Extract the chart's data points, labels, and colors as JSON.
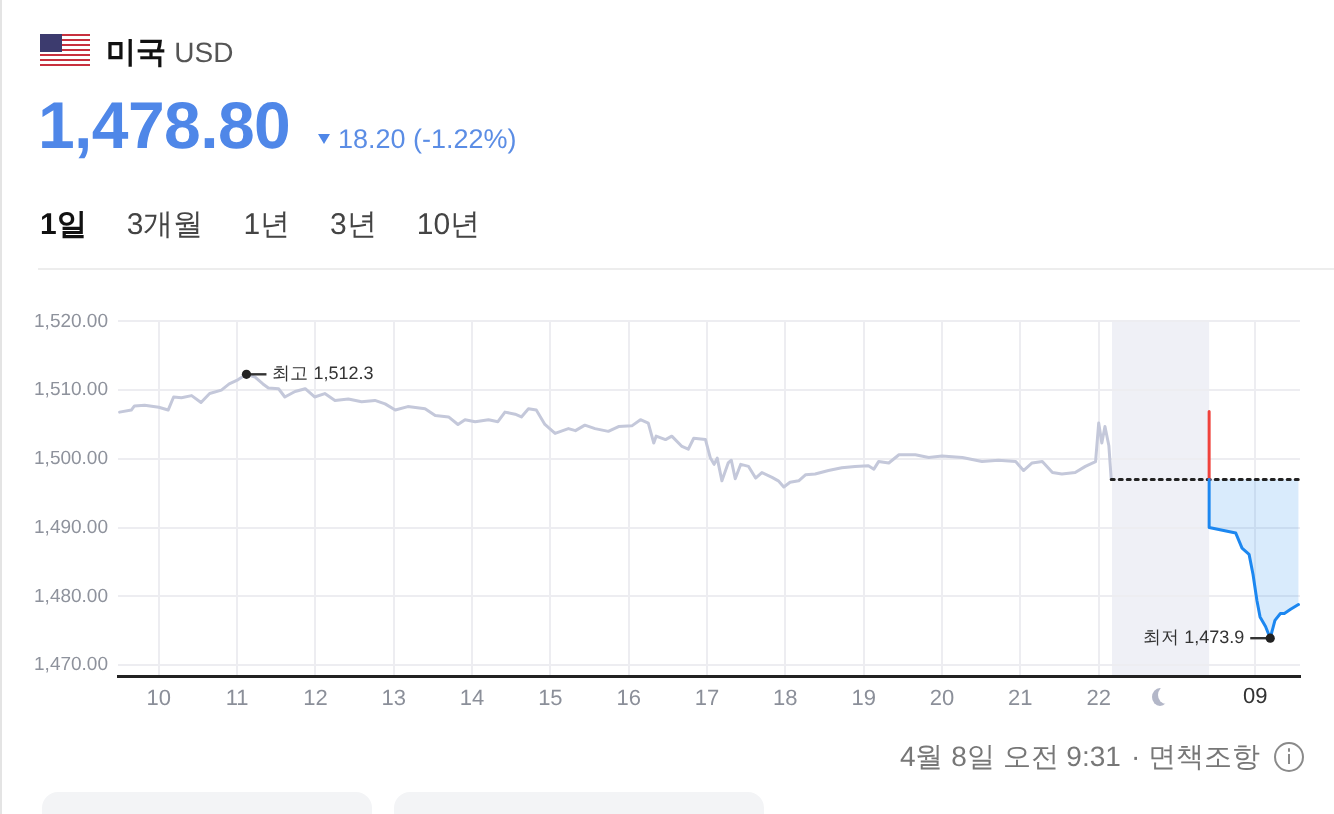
{
  "chart_data": {
    "type": "line",
    "title": "미국 USD",
    "subtitle": "1,478.80",
    "annotations": [
      "18.20 (-1.22%)",
      "1일",
      "3개월",
      "1년",
      "3년",
      "10년",
      "09",
      "4월 8일 오전 9:31",
      "· 면책조항",
      {
        "text": "최고 1,512.3",
        "x": 11.12,
        "y": 1512.3
      },
      {
        "text": "최저 1,473.9",
        "x": 24.19,
        "y": 1473.9
      }
    ],
    "xlim": [
      9.48,
      24.57
    ],
    "xticks": [
      10,
      11,
      12,
      13,
      14,
      15,
      16,
      17,
      18,
      19,
      20,
      21,
      22,
      {
        "value": 24,
        "label": null
      }
    ],
    "ylim": [
      1468.4,
      1520
    ],
    "yticks": [
      {
        "value": 1470,
        "label": "1,470.00"
      },
      {
        "value": 1480,
        "label": "1,480.00"
      },
      {
        "value": 1490,
        "label": "1,490.00"
      },
      {
        "value": 1500,
        "label": "1,500.00"
      },
      {
        "value": 1510,
        "label": "1,510.00"
      },
      {
        "value": 1520,
        "label": "1,520.00"
      }
    ],
    "grid": true,
    "bands": [
      {
        "axis": "x",
        "from": 22.17,
        "to": 23.41,
        "color": "#eff0f6"
      }
    ],
    "series": [
      {
        "color": "#c4c8da",
        "x": [
          9.5,
          9.65,
          9.69,
          9.82,
          10.0,
          10.12,
          10.19,
          10.29,
          10.42,
          10.54,
          10.65,
          10.8,
          10.9,
          11.01,
          11.12,
          11.23,
          11.33,
          11.4,
          11.53,
          11.61,
          11.74,
          11.87,
          11.99,
          12.12,
          12.25,
          12.42,
          12.59,
          12.76,
          12.89,
          13.02,
          13.18,
          13.4,
          13.53,
          13.7,
          13.82,
          13.91,
          14.04,
          14.21,
          14.33,
          14.42,
          14.55,
          14.63,
          14.72,
          14.82,
          14.93,
          15.06,
          15.23,
          15.32,
          15.44,
          15.57,
          15.74,
          15.87,
          16.04,
          16.15,
          16.25,
          16.32,
          16.35,
          16.47,
          16.55,
          16.68,
          16.76,
          16.83,
          16.98,
          17.04,
          17.09,
          17.13,
          17.19,
          17.27,
          17.31,
          17.36,
          17.43,
          17.53,
          17.62,
          17.7,
          17.83,
          17.91,
          17.98,
          18.06,
          18.17,
          18.26,
          18.38,
          18.55,
          18.72,
          18.89,
          19.06,
          19.13,
          19.19,
          19.32,
          19.45,
          19.66,
          19.83,
          20.0,
          20.26,
          20.51,
          20.72,
          20.94,
          21.04,
          21.15,
          21.28,
          21.41,
          21.53,
          21.7,
          21.83,
          21.96,
          22.0,
          22.04,
          22.08,
          22.13,
          22.16
        ],
        "values": [
          1506.8,
          1507.1,
          1507.7,
          1507.8,
          1507.5,
          1507.1,
          1509.0,
          1508.9,
          1509.2,
          1508.2,
          1509.5,
          1510.0,
          1510.9,
          1511.5,
          1512.3,
          1511.9,
          1510.9,
          1510.3,
          1510.2,
          1509.0,
          1509.8,
          1510.2,
          1509.0,
          1509.5,
          1508.5,
          1508.7,
          1508.3,
          1508.5,
          1508.0,
          1507.1,
          1507.6,
          1507.3,
          1506.3,
          1506.1,
          1505.0,
          1505.7,
          1505.4,
          1505.7,
          1505.4,
          1506.8,
          1506.5,
          1506.1,
          1507.3,
          1507.1,
          1505.0,
          1503.7,
          1504.4,
          1504.1,
          1504.9,
          1504.4,
          1504.0,
          1504.7,
          1504.8,
          1505.7,
          1505.2,
          1502.3,
          1503.3,
          1502.8,
          1503.3,
          1501.8,
          1501.4,
          1503.0,
          1502.8,
          1500.2,
          1499.2,
          1500.1,
          1496.8,
          1499.4,
          1499.8,
          1497.1,
          1499.2,
          1498.9,
          1497.2,
          1498.0,
          1497.3,
          1496.8,
          1495.9,
          1496.6,
          1496.8,
          1497.7,
          1497.8,
          1498.3,
          1498.7,
          1498.9,
          1499.0,
          1498.5,
          1499.6,
          1499.4,
          1500.6,
          1500.6,
          1500.2,
          1500.4,
          1500.2,
          1499.6,
          1499.8,
          1499.6,
          1498.3,
          1499.4,
          1499.6,
          1498.0,
          1497.8,
          1498.0,
          1498.9,
          1499.6,
          1505.2,
          1502.3,
          1504.7,
          1501.9,
          1497.0
        ]
      },
      {
        "color": "#222222",
        "line_style": "dotted",
        "x": [
          22.16,
          24.57
        ],
        "values": [
          1497.0,
          1497.0
        ]
      },
      {
        "color": "#f0423c",
        "x": [
          23.41,
          23.41
        ],
        "values": [
          1506.9,
          1497.0
        ]
      },
      {
        "color": "#1c87f0",
        "x": [
          23.41,
          23.41,
          23.75,
          23.83,
          23.92,
          23.97,
          24.02,
          24.06,
          24.13,
          24.19,
          24.25,
          24.32,
          24.37,
          24.45,
          24.55
        ],
        "values": [
          1497.0,
          1490.0,
          1489.2,
          1487.0,
          1486.1,
          1483.2,
          1479.4,
          1477.0,
          1475.6,
          1473.9,
          1476.5,
          1477.5,
          1477.5,
          1478.1,
          1478.8
        ],
        "lower": [
          null,
          1490.0,
          1489.2,
          1487.0,
          1486.1,
          1483.2,
          1479.4,
          1477.0,
          1475.6,
          1473.9,
          1476.5,
          1477.5,
          1477.5,
          1478.1,
          1478.8
        ],
        "upper": [
          null,
          1497.0,
          1497.0,
          1497.0,
          1497.0,
          1497.0,
          1497.0,
          1497.0,
          1497.0,
          1497.0,
          1497.0,
          1497.0,
          1497.0,
          1497.0,
          1497.0
        ]
      }
    ]
  }
}
